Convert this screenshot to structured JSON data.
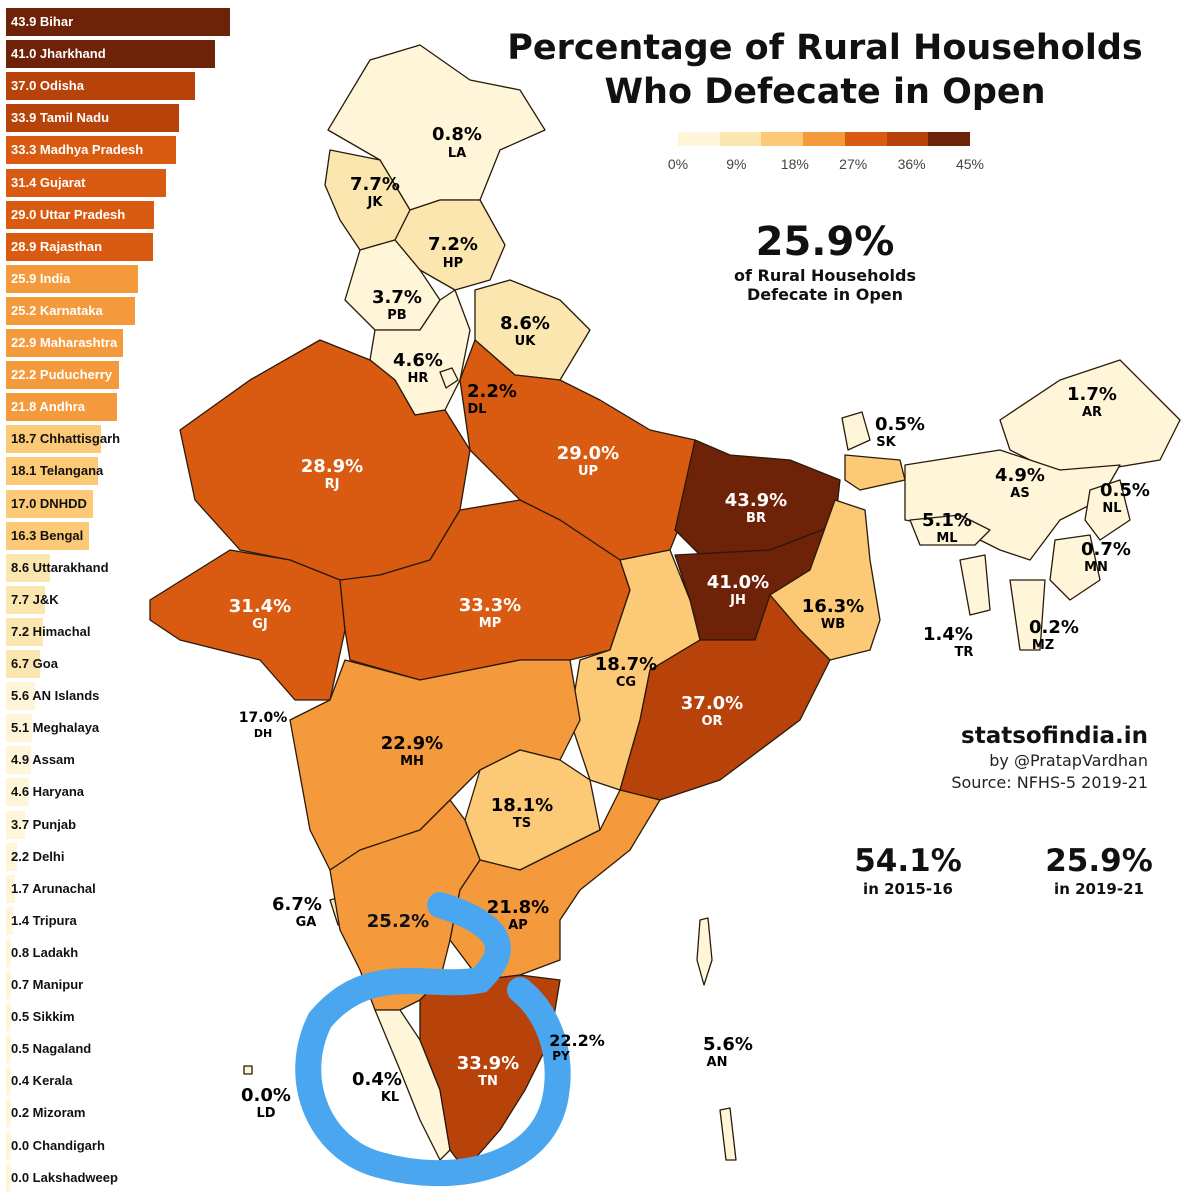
{
  "title": {
    "line1": "Percentage of Rural Households",
    "line2": "Who Defecate in Open"
  },
  "colors": {
    "scale": [
      "#fff6d9",
      "#fbe6b0",
      "#fcc976",
      "#f49a3c",
      "#d95b12",
      "#b8430a",
      "#6e2208"
    ],
    "border": "#2a1a0a",
    "annotation": "#4aa6ee"
  },
  "legend": {
    "ticks": [
      "0%",
      "9%",
      "18%",
      "27%",
      "36%",
      "45%"
    ],
    "max": 45
  },
  "headline": {
    "value": "25.9%",
    "line1": "of Rural Households",
    "line2": "Defecate in Open"
  },
  "credits": {
    "site": "statsofindia.in",
    "author": "by @PratapVardhan",
    "source": "Source: NFHS-5 2019-21"
  },
  "comparison": [
    {
      "value": "54.1%",
      "year": "in 2015-16"
    },
    {
      "value": "25.9%",
      "year": "in 2019-21"
    }
  ],
  "ranking": [
    {
      "value": 43.9,
      "label": "43.9 Bihar"
    },
    {
      "value": 41.0,
      "label": "41.0 Jharkhand"
    },
    {
      "value": 37.0,
      "label": "37.0 Odisha"
    },
    {
      "value": 33.9,
      "label": "33.9 Tamil Nadu"
    },
    {
      "value": 33.3,
      "label": "33.3 Madhya Pradesh"
    },
    {
      "value": 31.4,
      "label": "31.4 Gujarat"
    },
    {
      "value": 29.0,
      "label": "29.0 Uttar Pradesh"
    },
    {
      "value": 28.9,
      "label": "28.9 Rajasthan"
    },
    {
      "value": 25.9,
      "label": "25.9 India"
    },
    {
      "value": 25.2,
      "label": "25.2 Karnataka"
    },
    {
      "value": 22.9,
      "label": "22.9 Maharashtra"
    },
    {
      "value": 22.2,
      "label": "22.2 Puducherry"
    },
    {
      "value": 21.8,
      "label": "21.8 Andhra"
    },
    {
      "value": 18.7,
      "label": "18.7 Chhattisgarh"
    },
    {
      "value": 18.1,
      "label": "18.1 Telangana"
    },
    {
      "value": 17.0,
      "label": "17.0 DNHDD"
    },
    {
      "value": 16.3,
      "label": "16.3 Bengal"
    },
    {
      "value": 8.6,
      "label": "8.6 Uttarakhand"
    },
    {
      "value": 7.7,
      "label": "7.7 J&K"
    },
    {
      "value": 7.2,
      "label": "7.2 Himachal"
    },
    {
      "value": 6.7,
      "label": "6.7 Goa"
    },
    {
      "value": 5.6,
      "label": "5.6 AN Islands"
    },
    {
      "value": 5.1,
      "label": "5.1 Meghalaya"
    },
    {
      "value": 4.9,
      "label": "4.9 Assam"
    },
    {
      "value": 4.6,
      "label": "4.6 Haryana"
    },
    {
      "value": 3.7,
      "label": "3.7 Punjab"
    },
    {
      "value": 2.2,
      "label": "2.2 Delhi"
    },
    {
      "value": 1.7,
      "label": "1.7 Arunachal"
    },
    {
      "value": 1.4,
      "label": "1.4 Tripura"
    },
    {
      "value": 0.8,
      "label": "0.8 Ladakh"
    },
    {
      "value": 0.7,
      "label": "0.7 Manipur"
    },
    {
      "value": 0.5,
      "label": "0.5 Sikkim"
    },
    {
      "value": 0.5,
      "label": "0.5 Nagaland"
    },
    {
      "value": 0.4,
      "label": "0.4 Kerala"
    },
    {
      "value": 0.2,
      "label": "0.2 Mizoram"
    },
    {
      "value": 0.0,
      "label": "0.0 Chandigarh"
    },
    {
      "value": 0.0,
      "label": "0.0 Lakshadweep"
    }
  ],
  "states": {
    "LA": {
      "pct": "0.8%",
      "code": "LA",
      "value": 0.8
    },
    "JK": {
      "pct": "7.7%",
      "code": "JK",
      "value": 7.7
    },
    "HP": {
      "pct": "7.2%",
      "code": "HP",
      "value": 7.2
    },
    "PB": {
      "pct": "3.7%",
      "code": "PB",
      "value": 3.7
    },
    "UK": {
      "pct": "8.6%",
      "code": "UK",
      "value": 8.6
    },
    "HR": {
      "pct": "4.6%",
      "code": "HR",
      "value": 4.6
    },
    "DL": {
      "pct": "2.2%",
      "code": "DL",
      "value": 2.2
    },
    "RJ": {
      "pct": "28.9%",
      "code": "RJ",
      "value": 28.9
    },
    "UP": {
      "pct": "29.0%",
      "code": "UP",
      "value": 29.0
    },
    "BR": {
      "pct": "43.9%",
      "code": "BR",
      "value": 43.9
    },
    "SK": {
      "pct": "0.5%",
      "code": "SK",
      "value": 0.5
    },
    "AR": {
      "pct": "1.7%",
      "code": "AR",
      "value": 1.7
    },
    "AS": {
      "pct": "4.9%",
      "code": "AS",
      "value": 4.9
    },
    "NL": {
      "pct": "0.5%",
      "code": "NL",
      "value": 0.5
    },
    "ML": {
      "pct": "5.1%",
      "code": "ML",
      "value": 5.1
    },
    "MN": {
      "pct": "0.7%",
      "code": "MN",
      "value": 0.7
    },
    "TR": {
      "pct": "1.4%",
      "code": "TR",
      "value": 1.4
    },
    "MZ": {
      "pct": "0.2%",
      "code": "MZ",
      "value": 0.2
    },
    "JH": {
      "pct": "41.0%",
      "code": "JH",
      "value": 41.0
    },
    "WB": {
      "pct": "16.3%",
      "code": "WB",
      "value": 16.3
    },
    "GJ": {
      "pct": "31.4%",
      "code": "GJ",
      "value": 31.4
    },
    "MP": {
      "pct": "33.3%",
      "code": "MP",
      "value": 33.3
    },
    "CG": {
      "pct": "18.7%",
      "code": "CG",
      "value": 18.7
    },
    "OR": {
      "pct": "37.0%",
      "code": "OR",
      "value": 37.0
    },
    "DH": {
      "pct": "17.0%",
      "code": "DH",
      "value": 17.0
    },
    "MH": {
      "pct": "22.9%",
      "code": "MH",
      "value": 22.9
    },
    "TS": {
      "pct": "18.1%",
      "code": "TS",
      "value": 18.1
    },
    "GA": {
      "pct": "6.7%",
      "code": "GA",
      "value": 6.7
    },
    "KA": {
      "pct": "25.2%",
      "code": "KA",
      "value": 25.2
    },
    "AP": {
      "pct": "21.8%",
      "code": "AP",
      "value": 21.8
    },
    "PY": {
      "pct": "22.2%",
      "code": "PY",
      "value": 22.2
    },
    "AN": {
      "pct": "5.6%",
      "code": "AN",
      "value": 5.6
    },
    "KL": {
      "pct": "0.4%",
      "code": "KL",
      "value": 0.4
    },
    "TN": {
      "pct": "33.9%",
      "code": "TN",
      "value": 33.9
    },
    "LD": {
      "pct": "0.0%",
      "code": "LD",
      "value": 0.0
    }
  }
}
